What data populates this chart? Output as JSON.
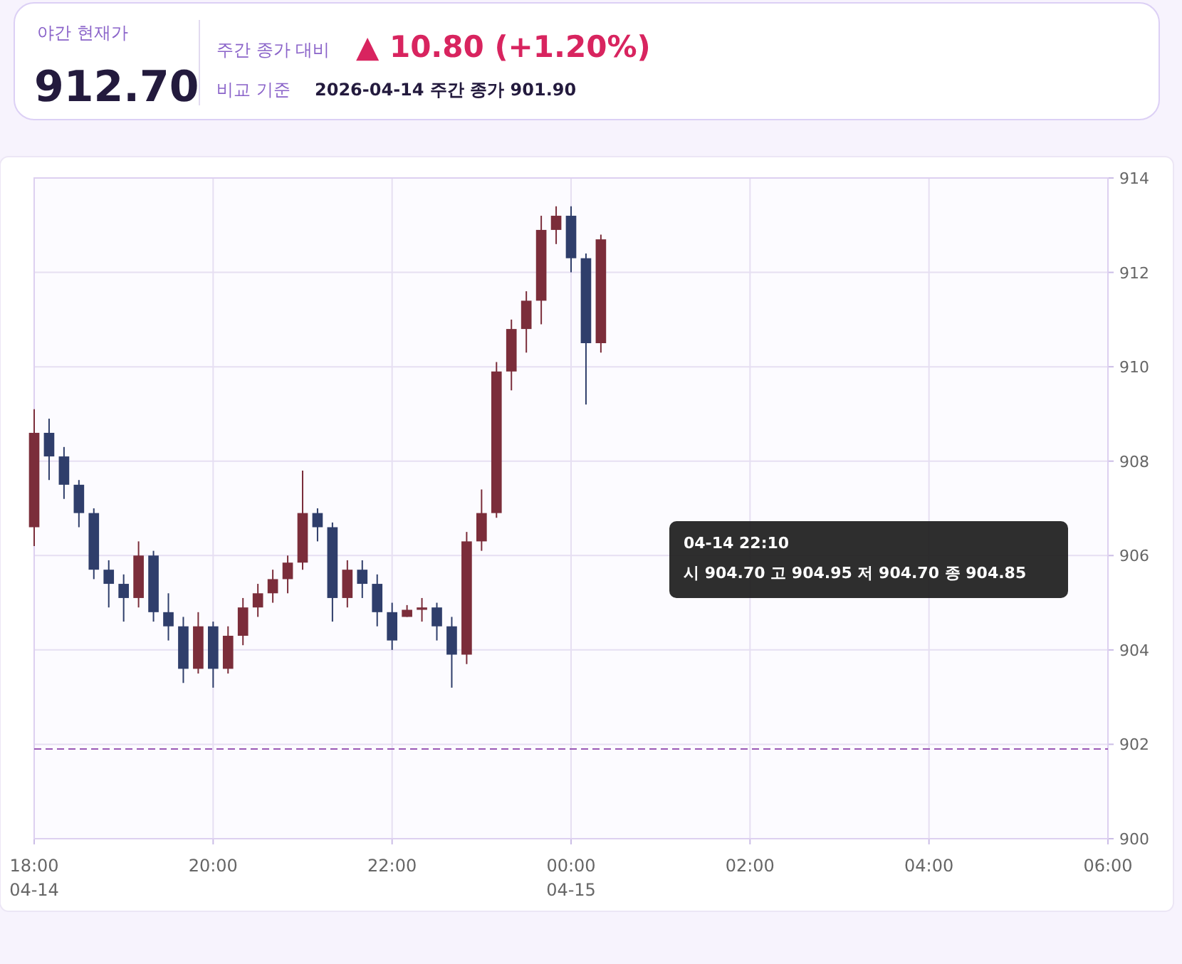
{
  "chart_data": {
    "type": "candlestick",
    "title": "야간 현재가",
    "subtitle": "912.70",
    "annotations": [
      "주간 종가 대비",
      "▲ 10.80 (+1.20%)",
      "비교 기준",
      "2026-04-14 주간 종가 901.90",
      "04-14 22:10",
      "시 904.70  고 904.95  저 904.70  종 904.85"
    ],
    "x": [
      "2026-04-14T18:00",
      "2026-04-14T18:10",
      "2026-04-14T18:20",
      "2026-04-14T18:30",
      "2026-04-14T18:40",
      "2026-04-14T18:50",
      "2026-04-14T19:00",
      "2026-04-14T19:10",
      "2026-04-14T19:20",
      "2026-04-14T19:30",
      "2026-04-14T19:40",
      "2026-04-14T19:50",
      "2026-04-14T20:00",
      "2026-04-14T20:10",
      "2026-04-14T20:20",
      "2026-04-14T20:30",
      "2026-04-14T20:40",
      "2026-04-14T20:50",
      "2026-04-14T21:00",
      "2026-04-14T21:10",
      "2026-04-14T21:20",
      "2026-04-14T21:30",
      "2026-04-14T21:40",
      "2026-04-14T21:50",
      "2026-04-14T22:00",
      "2026-04-14T22:10",
      "2026-04-14T22:20",
      "2026-04-14T22:30",
      "2026-04-14T22:40",
      "2026-04-14T22:50",
      "2026-04-14T23:00",
      "2026-04-14T23:10",
      "2026-04-14T23:20",
      "2026-04-14T23:30",
      "2026-04-14T23:40",
      "2026-04-14T23:50",
      "2026-04-15T00:00",
      "2026-04-15T00:10",
      "2026-04-15T00:20"
    ],
    "ohlc": [
      [
        906.6,
        909.1,
        906.2,
        908.6
      ],
      [
        908.6,
        908.9,
        907.6,
        908.1
      ],
      [
        908.1,
        908.3,
        907.2,
        907.5
      ],
      [
        907.5,
        907.6,
        906.6,
        906.9
      ],
      [
        906.9,
        907.0,
        905.5,
        905.7
      ],
      [
        905.7,
        905.9,
        904.9,
        905.4
      ],
      [
        905.4,
        905.6,
        904.6,
        905.1
      ],
      [
        905.1,
        906.3,
        904.9,
        906.0
      ],
      [
        906.0,
        906.1,
        904.6,
        904.8
      ],
      [
        904.8,
        905.2,
        904.2,
        904.5
      ],
      [
        904.5,
        904.7,
        903.3,
        903.6
      ],
      [
        903.6,
        904.8,
        903.5,
        904.5
      ],
      [
        904.5,
        904.6,
        903.2,
        903.6
      ],
      [
        903.6,
        904.5,
        903.5,
        904.3
      ],
      [
        904.3,
        905.1,
        904.1,
        904.9
      ],
      [
        904.9,
        905.4,
        904.7,
        905.2
      ],
      [
        905.2,
        905.7,
        905.0,
        905.5
      ],
      [
        905.5,
        906.0,
        905.2,
        905.85
      ],
      [
        905.85,
        907.8,
        905.7,
        906.9
      ],
      [
        906.9,
        907.0,
        906.3,
        906.6
      ],
      [
        906.6,
        906.7,
        904.6,
        905.1
      ],
      [
        905.1,
        905.9,
        904.9,
        905.7
      ],
      [
        905.7,
        905.9,
        905.1,
        905.4
      ],
      [
        905.4,
        905.6,
        904.5,
        904.8
      ],
      [
        904.8,
        905.0,
        904.0,
        904.2
      ],
      [
        904.7,
        904.95,
        904.7,
        904.85
      ],
      [
        904.85,
        905.1,
        904.6,
        904.9
      ],
      [
        904.9,
        905.0,
        904.2,
        904.5
      ],
      [
        904.5,
        904.7,
        903.2,
        903.9
      ],
      [
        903.9,
        906.5,
        903.7,
        906.3
      ],
      [
        906.3,
        907.4,
        906.1,
        906.9
      ],
      [
        906.9,
        910.1,
        906.8,
        909.9
      ],
      [
        909.9,
        911.0,
        909.5,
        910.8
      ],
      [
        910.8,
        911.6,
        910.3,
        911.4
      ],
      [
        911.4,
        913.2,
        910.9,
        912.9
      ],
      [
        912.9,
        913.4,
        912.6,
        913.2
      ],
      [
        913.2,
        913.4,
        912.0,
        912.3
      ],
      [
        912.3,
        912.4,
        909.2,
        910.5
      ],
      [
        910.5,
        912.8,
        910.3,
        912.7
      ]
    ],
    "xlim": [
      "2026-04-14T18:00",
      "2026-04-15T06:00"
    ],
    "xticks": [
      {
        "value": "2026-04-14T18:00",
        "label": "18:00\n04-14"
      },
      {
        "value": "2026-04-14T20:00",
        "label": "20:00"
      },
      {
        "value": "2026-04-14T22:00",
        "label": "22:00"
      },
      {
        "value": "2026-04-15T00:00",
        "label": "00:00\n04-15"
      },
      {
        "value": "2026-04-15T02:00",
        "label": "02:00"
      },
      {
        "value": "2026-04-15T04:00",
        "label": "04:00"
      },
      {
        "value": "2026-04-15T06:00",
        "label": "06:00"
      }
    ],
    "ylim": [
      900,
      914
    ],
    "yticks": [
      900,
      902,
      904,
      906,
      908,
      910,
      912,
      914
    ],
    "ref_lines": [
      {
        "axis": "y",
        "value": 901.9,
        "color": "#9b59b6",
        "line_style": "dashed"
      }
    ],
    "grid": true
  }
}
